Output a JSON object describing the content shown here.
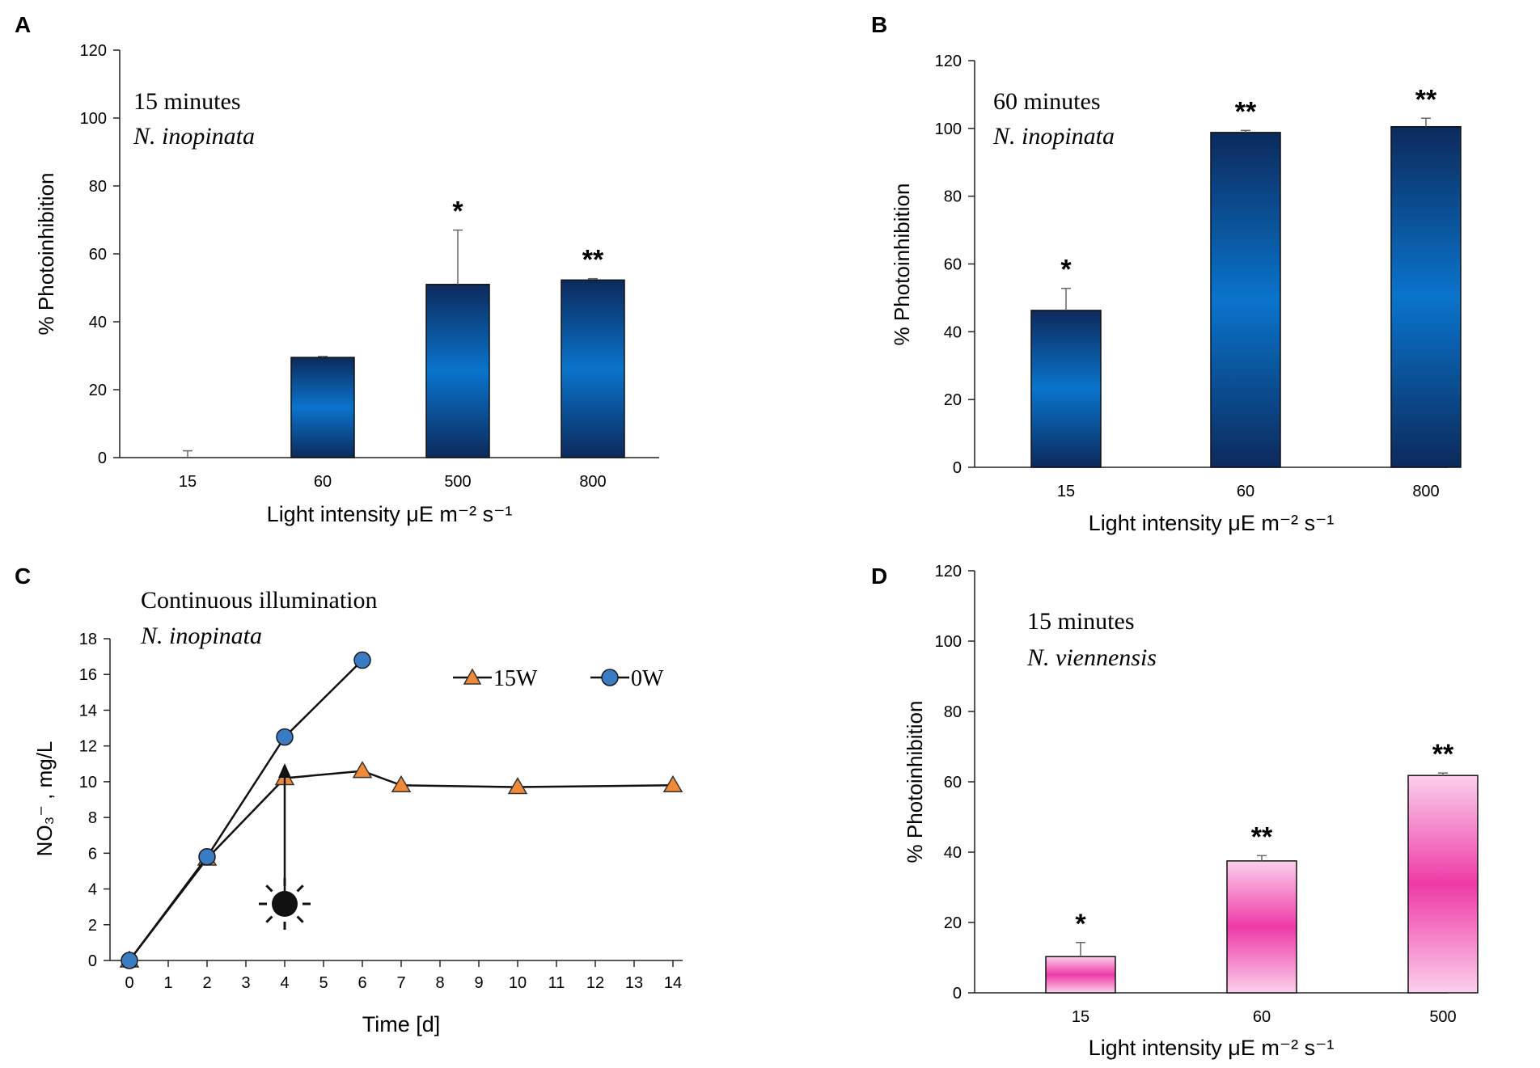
{
  "chart_data": [
    {
      "panel": "A",
      "type": "bar",
      "title": "15 minutes",
      "subtitle": "N. inopinata",
      "xlabel": "Light intensity μE m⁻² s⁻¹",
      "ylabel": "% Photoinhibition",
      "ylim": [
        0,
        120
      ],
      "yticks": [
        0,
        20,
        40,
        60,
        80,
        100,
        120
      ],
      "categories": [
        "15",
        "60",
        "500",
        "800"
      ],
      "values": [
        0,
        29.5,
        51,
        52.3
      ],
      "errors": [
        2,
        0.3,
        16,
        0.4
      ],
      "significance": [
        "",
        "",
        "*",
        "**"
      ],
      "color": "blue"
    },
    {
      "panel": "B",
      "type": "bar",
      "title": "60 minutes",
      "subtitle": "N. inopinata",
      "xlabel": "Light intensity μE m⁻² s⁻¹",
      "ylabel": "% Photoinhibition",
      "ylim": [
        0,
        120
      ],
      "yticks": [
        0,
        20,
        40,
        60,
        80,
        100,
        120
      ],
      "categories": [
        "15",
        "60",
        "800"
      ],
      "values": [
        46.3,
        98.8,
        100.5
      ],
      "errors": [
        6.5,
        0.6,
        2.5
      ],
      "significance": [
        "*",
        "**",
        "**"
      ],
      "color": "blue"
    },
    {
      "panel": "C",
      "type": "line",
      "title": "Continuous illumination",
      "subtitle": "N. inopinata",
      "xlabel": "Time [d]",
      "ylabel": "NO₃⁻ , mg/L",
      "xlim": [
        0,
        14
      ],
      "xticks": [
        0,
        1,
        2,
        3,
        4,
        5,
        6,
        7,
        8,
        9,
        10,
        11,
        12,
        13,
        14
      ],
      "ylim": [
        0,
        18
      ],
      "yticks": [
        0,
        2,
        4,
        6,
        8,
        10,
        12,
        14,
        16,
        18
      ],
      "series": [
        {
          "name": "15W",
          "marker": "triangle",
          "color": "#ef8a3a",
          "x": [
            0,
            2,
            4,
            6,
            7,
            10,
            14
          ],
          "y": [
            0,
            5.7,
            10.2,
            10.6,
            9.8,
            9.7,
            9.8
          ]
        },
        {
          "name": "0W",
          "marker": "circle",
          "color": "#3a7cc4",
          "x": [
            0,
            2,
            4,
            6
          ],
          "y": [
            0,
            5.8,
            12.5,
            16.8
          ]
        }
      ],
      "annotation": {
        "label": "light on",
        "x": 4
      }
    },
    {
      "panel": "D",
      "type": "bar",
      "title": "15 minutes",
      "subtitle": "N. viennensis",
      "xlabel": "Light intensity μE m⁻² s⁻¹",
      "ylabel": "% Photoinhibition",
      "ylim": [
        0,
        120
      ],
      "yticks": [
        0,
        20,
        40,
        60,
        80,
        100,
        120
      ],
      "categories": [
        "15",
        "60",
        "500"
      ],
      "values": [
        10.3,
        37.5,
        61.8
      ],
      "errors": [
        4,
        1.5,
        0.7
      ],
      "significance": [
        "*",
        "**",
        "**"
      ],
      "color": "pink"
    }
  ]
}
